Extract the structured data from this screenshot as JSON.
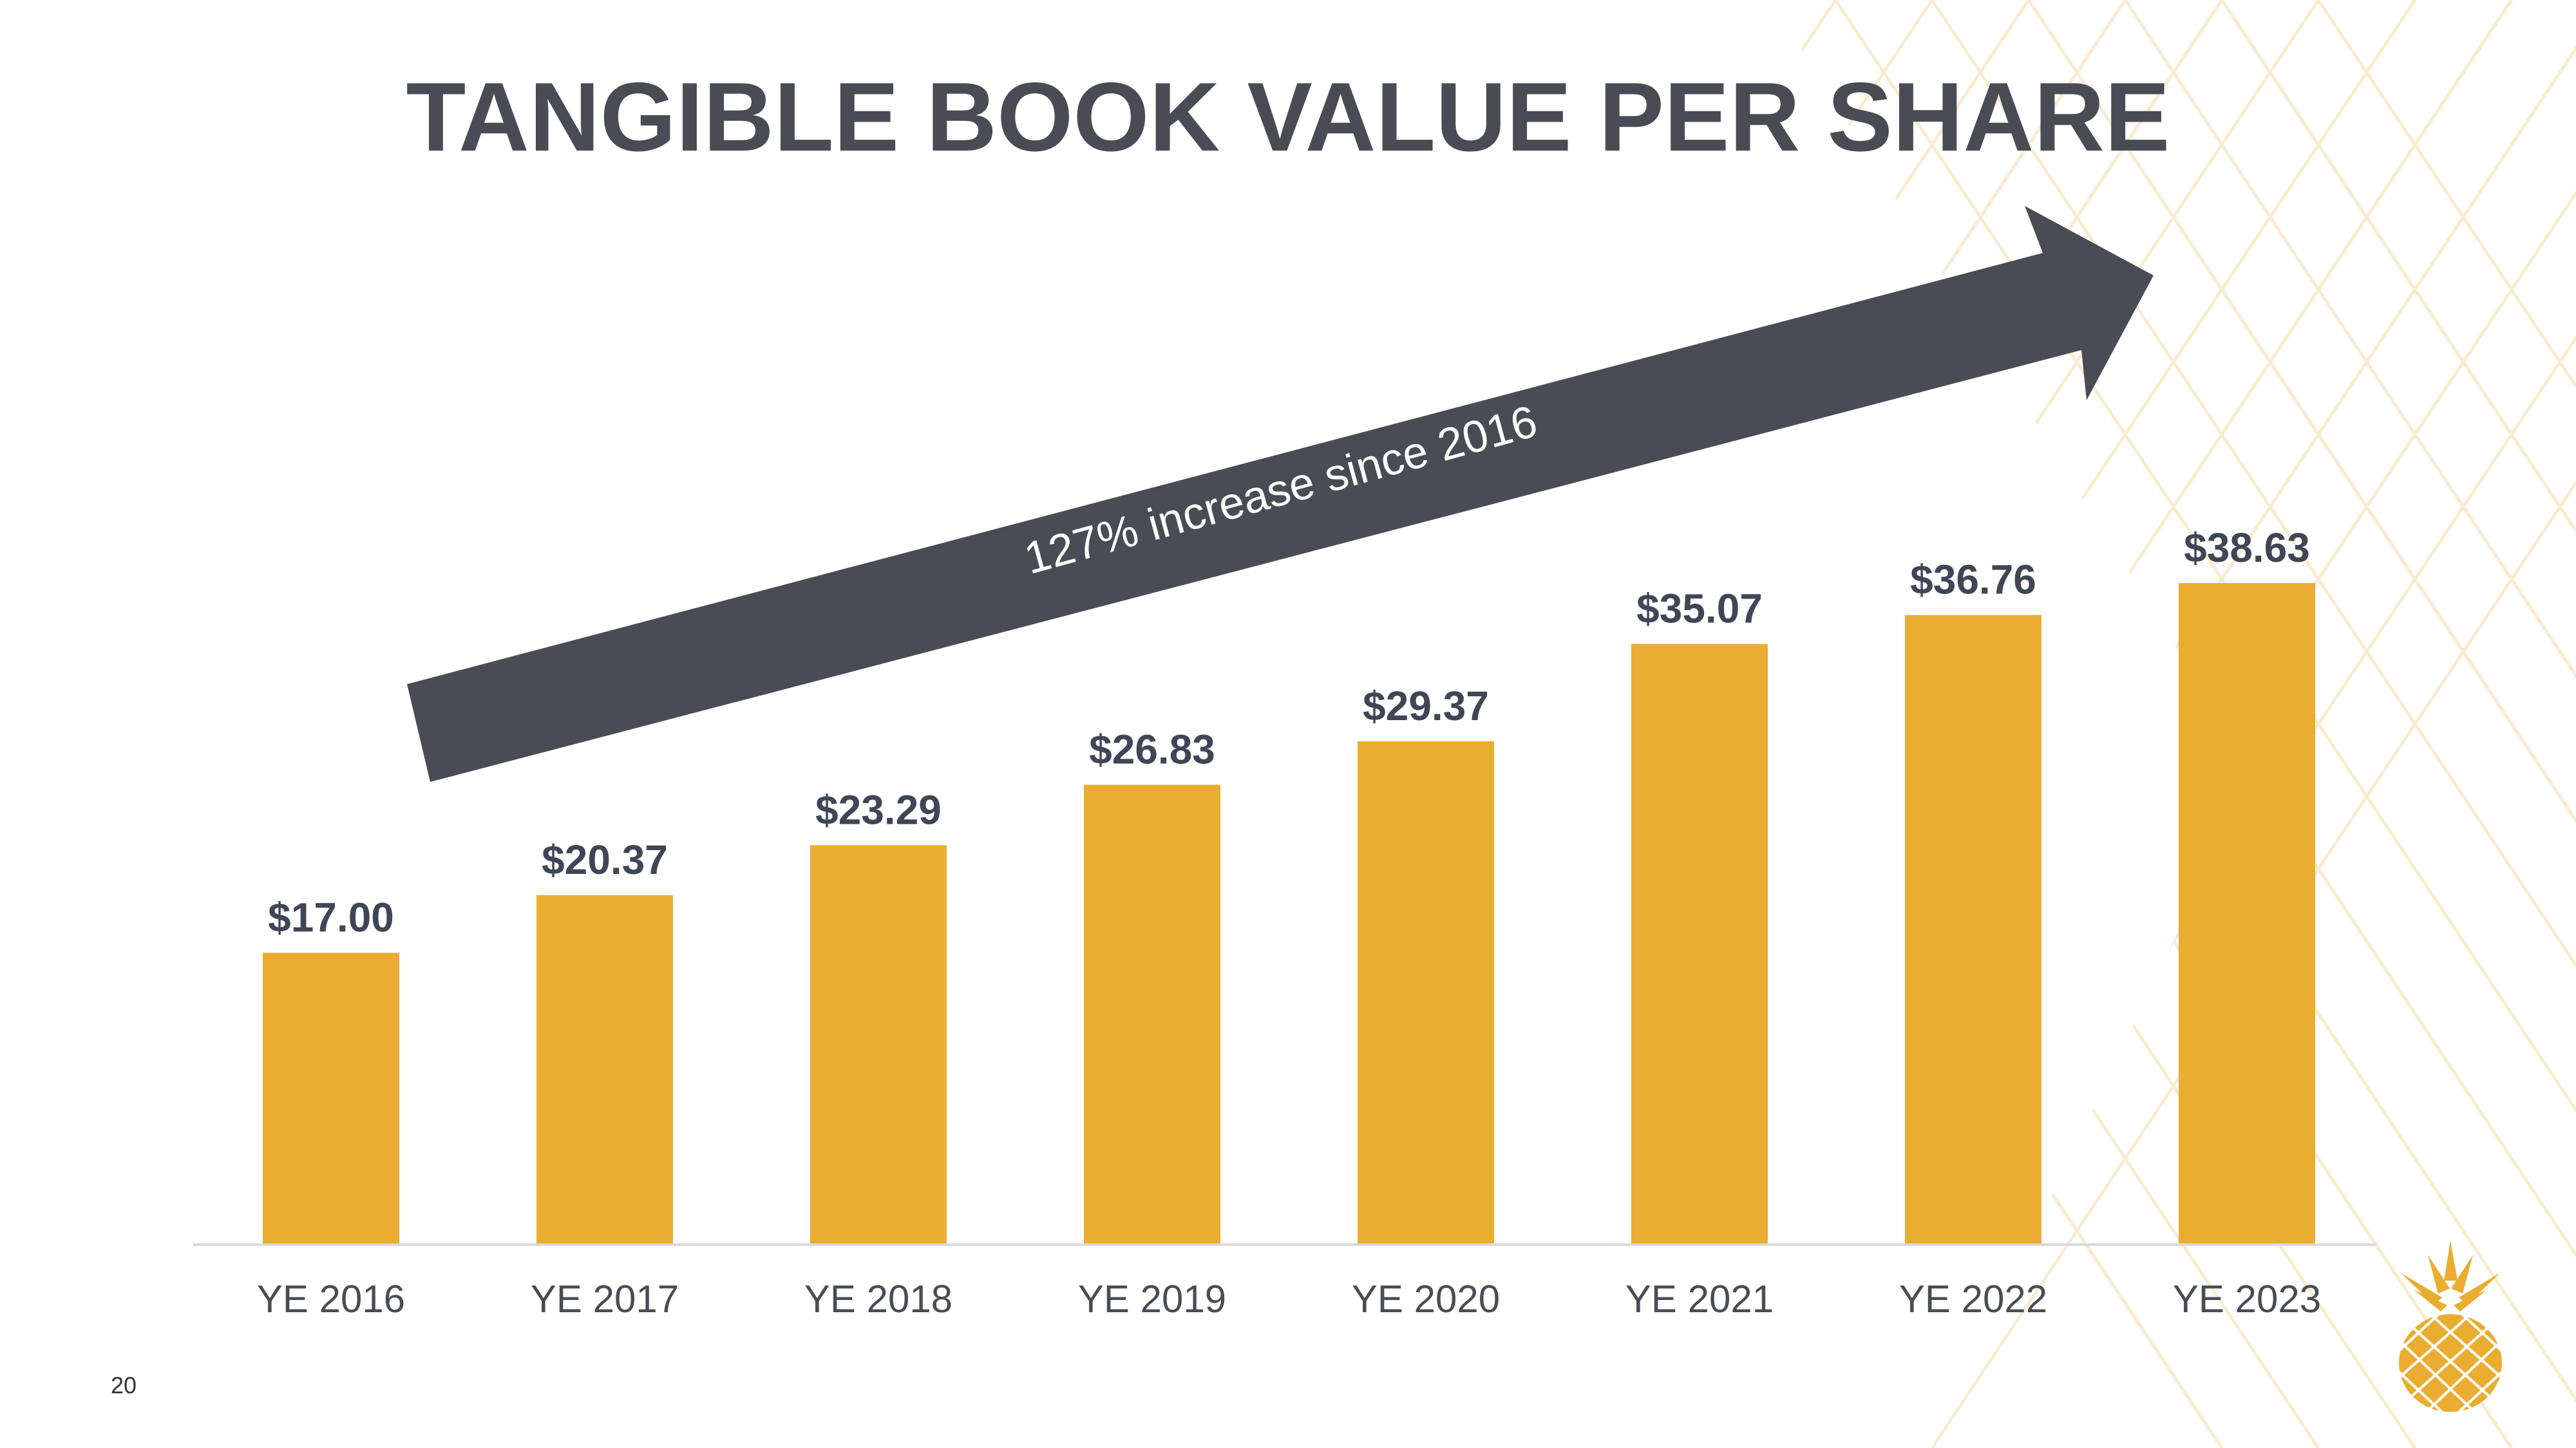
{
  "title": "TANGIBLE BOOK VALUE PER SHARE",
  "page_number": "20",
  "annotation": "127% increase since 2016",
  "colors": {
    "bar": "#EAAD31",
    "title": "#4A4C55",
    "value_label": "#3F4656",
    "arrow": "#4A4C55",
    "tick_label": "#4A4C55",
    "pattern": "#F6E6BF"
  },
  "logo_icon": "pineapple-icon",
  "chart_data": {
    "type": "bar",
    "title": "TANGIBLE BOOK VALUE PER SHARE",
    "xlabel": "",
    "ylabel": "",
    "categories": [
      "YE 2016",
      "YE 2017",
      "YE 2018",
      "YE 2019",
      "YE 2020",
      "YE 2021",
      "YE 2022",
      "YE 2023"
    ],
    "values": [
      17.0,
      20.37,
      23.29,
      26.83,
      29.37,
      35.07,
      36.76,
      38.63
    ],
    "value_labels": [
      "$17.00",
      "$20.37",
      "$23.29",
      "$26.83",
      "$29.37",
      "$35.07",
      "$36.76",
      "$38.63"
    ],
    "ylim": [
      0,
      38.63
    ],
    "grid": false,
    "legend": "none"
  }
}
